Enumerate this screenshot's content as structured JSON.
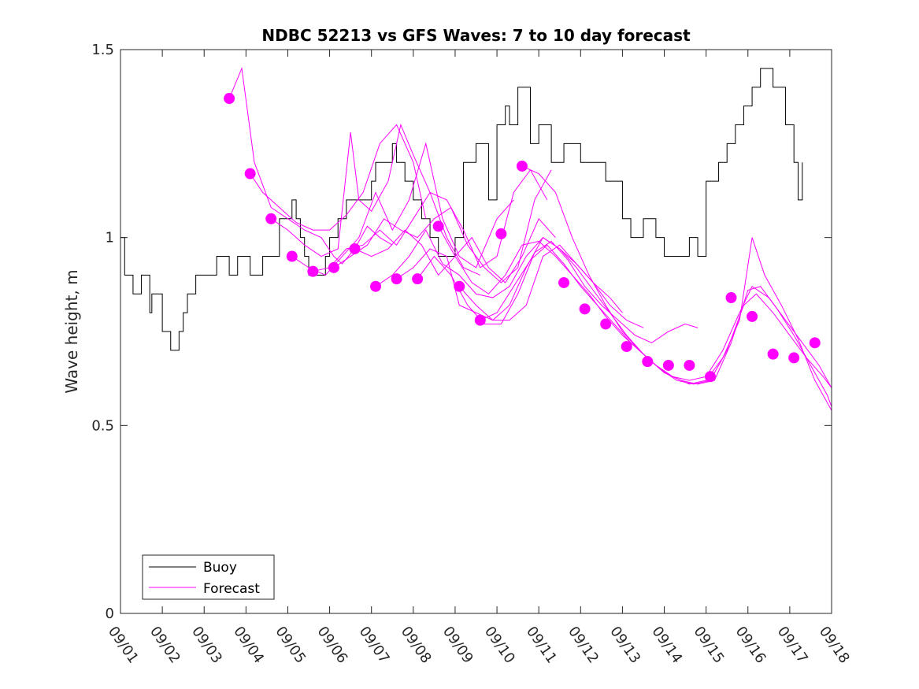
{
  "colors": {
    "buoy": "#000000",
    "forecast": "#ff00ff",
    "axis": "#262626"
  },
  "chart_data": {
    "type": "line",
    "title": "NDBC 52213 vs GFS Waves: 7 to 10 day forecast",
    "xlabel": "",
    "ylabel": "Wave height, m",
    "xlim": [
      1,
      18
    ],
    "ylim": [
      0,
      1.5
    ],
    "yticks": [
      0,
      0.5,
      1,
      1.5
    ],
    "ytick_labels": [
      "0",
      "0.5",
      "1",
      "1.5"
    ],
    "xticks": [
      1,
      2,
      3,
      4,
      5,
      6,
      7,
      8,
      9,
      10,
      11,
      12,
      13,
      14,
      15,
      16,
      17,
      18
    ],
    "xtick_labels": [
      "09/01",
      "09/02",
      "09/03",
      "09/04",
      "09/05",
      "09/06",
      "09/07",
      "09/08",
      "09/09",
      "09/10",
      "09/11",
      "09/12",
      "09/13",
      "09/14",
      "09/15",
      "09/16",
      "09/17",
      "09/18"
    ],
    "legend": {
      "position": "bottom-left",
      "entries": [
        "Buoy",
        "Forecast"
      ]
    },
    "series": [
      {
        "name": "Buoy",
        "type": "step-line",
        "x": [
          1.0,
          1.1,
          1.3,
          1.5,
          1.7,
          1.75,
          2.0,
          2.2,
          2.4,
          2.5,
          2.6,
          2.8,
          3.0,
          3.3,
          3.5,
          3.6,
          3.8,
          4.0,
          4.1,
          4.2,
          4.4,
          4.6,
          4.8,
          5.0,
          5.1,
          5.2,
          5.3,
          5.4,
          5.5,
          5.7,
          5.9,
          6.0,
          6.2,
          6.4,
          6.6,
          6.8,
          7.0,
          7.1,
          7.3,
          7.5,
          7.6,
          7.8,
          8.0,
          8.2,
          8.4,
          8.6,
          8.8,
          9.0,
          9.2,
          9.5,
          9.8,
          10.0,
          10.2,
          10.3,
          10.5,
          10.8,
          11.0,
          11.3,
          11.6,
          12.0,
          12.3,
          12.6,
          13.0,
          13.2,
          13.5,
          13.8,
          14.0,
          14.3,
          14.6,
          14.8,
          15.0,
          15.3,
          15.5,
          15.7,
          15.9,
          16.1,
          16.3,
          16.6,
          16.9,
          17.1,
          17.2,
          17.3
        ],
        "y": [
          1.0,
          0.9,
          0.85,
          0.9,
          0.8,
          0.85,
          0.75,
          0.7,
          0.75,
          0.8,
          0.85,
          0.9,
          0.9,
          0.95,
          0.95,
          0.9,
          0.95,
          0.95,
          0.9,
          0.9,
          0.95,
          0.95,
          1.05,
          1.05,
          1.1,
          1.05,
          1.0,
          0.95,
          0.9,
          0.9,
          0.95,
          1.0,
          1.05,
          1.1,
          1.1,
          1.1,
          1.15,
          1.2,
          1.2,
          1.25,
          1.2,
          1.15,
          1.1,
          1.05,
          1.0,
          0.95,
          0.95,
          1.0,
          1.2,
          1.25,
          1.1,
          1.3,
          1.35,
          1.3,
          1.4,
          1.25,
          1.3,
          1.2,
          1.25,
          1.2,
          1.2,
          1.15,
          1.05,
          1.0,
          1.05,
          1.0,
          0.95,
          0.95,
          1.0,
          0.95,
          1.15,
          1.2,
          1.25,
          1.3,
          1.35,
          1.4,
          1.45,
          1.4,
          1.3,
          1.2,
          1.1,
          1.2
        ]
      },
      {
        "name": "Forecast",
        "type": "lines",
        "runs": [
          {
            "x": [
              3.6,
              3.9,
              4.2,
              4.6,
              5.0,
              5.4,
              5.8,
              6.1,
              6.3,
              6.6,
              6.9,
              7.2,
              7.5
            ],
            "y": [
              1.37,
              1.45,
              1.2,
              1.08,
              1.05,
              1.02,
              1.0,
              0.95,
              0.93,
              0.97,
              1.03,
              1.0,
              0.98
            ]
          },
          {
            "x": [
              4.1,
              4.4,
              4.8,
              5.2,
              5.6,
              6.0,
              6.4,
              6.8,
              7.2,
              7.6,
              8.0,
              8.3
            ],
            "y": [
              1.17,
              1.12,
              1.08,
              1.04,
              1.02,
              1.02,
              1.06,
              1.12,
              1.25,
              1.3,
              1.2,
              1.05
            ]
          },
          {
            "x": [
              4.6,
              5.0,
              5.4,
              5.8,
              6.2,
              6.5,
              6.7,
              7.0,
              7.4,
              7.7,
              8.0,
              8.4,
              8.8,
              9.2,
              9.6
            ],
            "y": [
              1.05,
              1.02,
              0.98,
              0.95,
              0.97,
              1.28,
              1.1,
              1.07,
              1.15,
              1.3,
              1.22,
              1.12,
              1.0,
              0.92,
              0.9
            ]
          },
          {
            "x": [
              5.1,
              5.5,
              5.9,
              6.3,
              6.7,
              7.1,
              7.5,
              7.9,
              8.3,
              8.7,
              9.1,
              9.5,
              10.0,
              10.4
            ],
            "y": [
              0.95,
              0.92,
              0.9,
              0.95,
              1.0,
              1.12,
              1.02,
              1.1,
              1.25,
              1.05,
              0.95,
              0.92,
              1.05,
              1.1
            ]
          },
          {
            "x": [
              5.6,
              6.0,
              6.4,
              6.8,
              7.2,
              7.6,
              8.0,
              8.4,
              8.8,
              9.2,
              9.6,
              10.0,
              10.4,
              10.8,
              11.2
            ],
            "y": [
              0.91,
              0.92,
              0.97,
              0.98,
              1.02,
              0.98,
              1.05,
              1.12,
              1.1,
              1.02,
              0.92,
              0.95,
              1.12,
              1.18,
              1.1
            ]
          },
          {
            "x": [
              6.1,
              6.5,
              6.9,
              7.3,
              7.7,
              8.1,
              8.5,
              8.9,
              9.3,
              9.7,
              10.1,
              10.5,
              10.9,
              11.3
            ],
            "y": [
              0.92,
              0.95,
              0.98,
              1.05,
              1.02,
              1.0,
              1.05,
              1.08,
              0.98,
              0.92,
              0.88,
              0.92,
              1.1,
              1.18
            ]
          },
          {
            "x": [
              6.6,
              7.0,
              7.4,
              7.8,
              8.2,
              8.6,
              9.0,
              9.4,
              9.8,
              10.2,
              10.6,
              11.0,
              11.4
            ],
            "y": [
              0.97,
              0.95,
              0.97,
              1.02,
              0.98,
              0.9,
              0.95,
              1.0,
              0.92,
              0.88,
              0.95,
              1.05,
              1.0
            ]
          },
          {
            "x": [
              7.1,
              7.5,
              7.9,
              8.3,
              8.7,
              9.1,
              9.5,
              9.9,
              10.3,
              10.7,
              11.1,
              11.5,
              11.9,
              12.3,
              12.7,
              13.0
            ],
            "y": [
              0.87,
              0.9,
              0.95,
              1.02,
              0.93,
              0.9,
              0.85,
              0.84,
              0.87,
              0.95,
              1.0,
              0.97,
              0.93,
              0.88,
              0.84,
              0.8
            ]
          },
          {
            "x": [
              7.6,
              8.0,
              8.4,
              8.8,
              9.1,
              9.5,
              9.9,
              10.3,
              10.7,
              11.1,
              11.5,
              11.9,
              12.3,
              12.7,
              13.1,
              13.5
            ],
            "y": [
              0.89,
              0.92,
              0.97,
              0.95,
              0.82,
              0.8,
              0.78,
              0.78,
              0.82,
              0.95,
              0.98,
              0.93,
              0.88,
              0.82,
              0.78,
              0.76
            ]
          },
          {
            "x": [
              8.1,
              8.5,
              8.9,
              9.3,
              9.7,
              10.1,
              10.5,
              10.9,
              11.3,
              11.7,
              12.1,
              12.5,
              12.9,
              13.3,
              13.7,
              14.1,
              14.5,
              14.8
            ],
            "y": [
              0.89,
              0.95,
              0.9,
              0.82,
              0.77,
              0.77,
              0.85,
              0.96,
              0.99,
              0.94,
              0.87,
              0.82,
              0.78,
              0.74,
              0.72,
              0.75,
              0.77,
              0.76
            ]
          },
          {
            "x": [
              8.6,
              9.0,
              9.4,
              9.8,
              10.2,
              10.6,
              11.0,
              11.4,
              11.8,
              12.2,
              12.6,
              13.0,
              13.4,
              13.8,
              14.2,
              14.6,
              15.0,
              15.4,
              15.8,
              16.1,
              16.5,
              16.9,
              17.3,
              17.7,
              18.0
            ],
            "y": [
              1.03,
              0.95,
              0.88,
              0.85,
              0.9,
              0.98,
              0.99,
              0.95,
              0.9,
              0.85,
              0.79,
              0.74,
              0.7,
              0.66,
              0.63,
              0.62,
              0.63,
              0.7,
              0.8,
              0.87,
              0.84,
              0.78,
              0.72,
              0.66,
              0.6
            ]
          },
          {
            "x": [
              9.1,
              9.5,
              9.9,
              10.3,
              10.7,
              11.1,
              11.5,
              11.9,
              12.3,
              12.7,
              13.1,
              13.5,
              13.9,
              14.3,
              14.7,
              15.1,
              15.5,
              15.9,
              16.2,
              16.6,
              17.0,
              17.4,
              17.8,
              18.0
            ],
            "y": [
              0.87,
              0.82,
              0.78,
              0.82,
              0.92,
              1.0,
              0.97,
              0.92,
              0.86,
              0.8,
              0.74,
              0.69,
              0.65,
              0.62,
              0.61,
              0.62,
              0.7,
              0.82,
              0.85,
              0.8,
              0.74,
              0.68,
              0.63,
              0.6
            ]
          },
          {
            "x": [
              9.6,
              10.0,
              10.4,
              10.8,
              11.2,
              11.6,
              12.0,
              12.4,
              12.8,
              13.2,
              13.6,
              14.0,
              14.4,
              14.8,
              15.2,
              15.6,
              16.0,
              16.3,
              16.7,
              17.1,
              17.5,
              17.9,
              18.0
            ],
            "y": [
              0.78,
              0.8,
              0.87,
              0.94,
              0.98,
              0.93,
              0.87,
              0.82,
              0.77,
              0.72,
              0.68,
              0.64,
              0.62,
              0.61,
              0.62,
              0.72,
              0.86,
              0.87,
              0.81,
              0.74,
              0.66,
              0.58,
              0.55
            ]
          },
          {
            "x": [
              10.6,
              11.0,
              11.4,
              11.8,
              12.2,
              12.6,
              13.0,
              13.4,
              13.8,
              14.2,
              14.6,
              15.0,
              15.4,
              15.8,
              16.1,
              16.4,
              16.8,
              17.2,
              17.6,
              18.0
            ],
            "y": [
              1.19,
              1.17,
              1.12,
              1.0,
              0.9,
              0.82,
              0.75,
              0.7,
              0.66,
              0.63,
              0.61,
              0.62,
              0.68,
              0.78,
              1.0,
              0.9,
              0.82,
              0.73,
              0.62,
              0.54
            ]
          }
        ],
        "markers": {
          "x": [
            3.6,
            4.1,
            4.6,
            5.1,
            5.6,
            6.1,
            6.6,
            7.1,
            7.6,
            8.1,
            8.6,
            9.1,
            9.6,
            10.1,
            10.6,
            11.6,
            12.1,
            12.6,
            13.1,
            13.6,
            14.1,
            14.6,
            15.1,
            15.6,
            16.1,
            16.6,
            17.1,
            17.6
          ],
          "y": [
            1.37,
            1.17,
            1.05,
            0.95,
            0.91,
            0.92,
            0.97,
            0.87,
            0.89,
            0.89,
            1.03,
            0.87,
            0.78,
            1.01,
            1.19,
            0.88,
            0.81,
            0.77,
            0.71,
            0.67,
            0.66,
            0.66,
            0.63,
            0.84,
            0.79,
            0.69,
            0.68,
            0.72
          ]
        }
      }
    ]
  }
}
